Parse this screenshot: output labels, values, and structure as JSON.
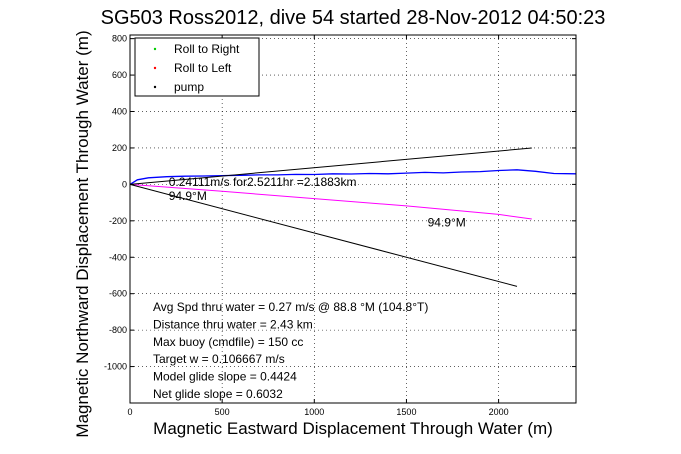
{
  "chart_data": {
    "type": "line",
    "title": "SG503 Ross2012, dive 54 started 28-Nov-2012 04:50:23",
    "xlabel": "Magnetic Eastward Displacement Through Water (m)",
    "ylabel": "Magnetic Northward Displacement Through Water (m)",
    "xlim": [
      0,
      2420
    ],
    "ylim": [
      -1200,
      820
    ],
    "x_ticks": [
      0,
      500,
      1000,
      1500,
      2000
    ],
    "y_ticks": [
      800,
      600,
      400,
      200,
      0,
      -200,
      -400,
      -600,
      -800,
      -1000
    ],
    "grid": true,
    "legend": {
      "placement": "top-left",
      "entries": [
        {
          "label": "Roll to Right",
          "color": "#00cc00",
          "marker": "dot"
        },
        {
          "label": "Roll to Left",
          "color": "#ff0000",
          "marker": "dot"
        },
        {
          "label": "pump",
          "color": "#000000",
          "marker": "dot"
        }
      ]
    },
    "series": [
      {
        "color": "#0000ff",
        "x": [
          0,
          40,
          100,
          200,
          300,
          400,
          500,
          600,
          700,
          800,
          900,
          1000,
          1100,
          1200,
          1300,
          1400,
          1500,
          1600,
          1700,
          1800,
          1900,
          2000,
          2100,
          2200,
          2300,
          2420
        ],
        "y": [
          0,
          25,
          36,
          42,
          45,
          46,
          48,
          50,
          52,
          52,
          55,
          54,
          58,
          57,
          60,
          58,
          62,
          66,
          63,
          68,
          70,
          76,
          80,
          72,
          60,
          58
        ]
      },
      {
        "color": "#ff00ff",
        "x": [
          0,
          200,
          500,
          1000,
          1500,
          2000,
          2180
        ],
        "y": [
          0,
          -15,
          -38,
          -78,
          -118,
          -165,
          -190
        ]
      },
      {
        "color": "#000000",
        "x": [
          0,
          2180
        ],
        "y": [
          0,
          200
        ]
      },
      {
        "color": "#000000",
        "x": [
          0,
          2100
        ],
        "y": [
          0,
          -560
        ]
      }
    ],
    "annotations": [
      {
        "text": "0.24111m/s for2.5211hr =2.1883km",
        "x": 210,
        "y": -10
      },
      {
        "text": "94.9°M",
        "x": 210,
        "y": -85
      },
      {
        "text": "94.9°M",
        "x": 1615,
        "y": -230
      }
    ],
    "stats": [
      "Avg Spd thru water =  0.27 m/s @  88.8    °M (104.8°T)",
      "Distance thru water =  2.43 km",
      "Max buoy (cmdfile) = 150 cc",
      "Target w = 0.106667 m/s",
      "Model glide slope = 0.4424",
      "Net glide slope = 0.6032"
    ]
  }
}
